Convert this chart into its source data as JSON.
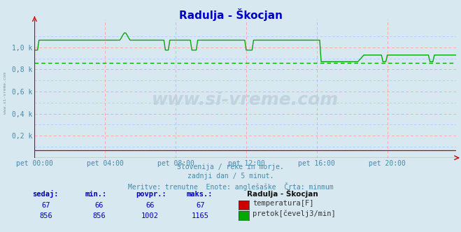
{
  "title": "Radulja - Škocjan",
  "title_color": "#0000cc",
  "bg_color": "#d8e8f0",
  "plot_bg_color": "#d8e8f0",
  "xlabel_color": "#4488aa",
  "ylabel_color": "#4488aa",
  "x_tick_labels": [
    "pet 00:00",
    "pet 04:00",
    "pet 08:00",
    "pet 12:00",
    "pet 16:00",
    "pet 20:00"
  ],
  "x_tick_positions": [
    0,
    48,
    96,
    144,
    192,
    240
  ],
  "y_tick_labels": [
    "0,2 k",
    "0,4 k",
    "0,6 k",
    "0,8 k",
    "1,0 k"
  ],
  "y_tick_values": [
    200,
    400,
    600,
    800,
    1000
  ],
  "ylim": [
    0,
    1250
  ],
  "xlim": [
    0,
    287
  ],
  "total_points": 288,
  "flow_min": 856,
  "temp_color": "#cc0000",
  "flow_color": "#00aa00",
  "min_line_color": "#00aa00",
  "footer_text1": "Slovenija / reke in morje.",
  "footer_text2": "zadnji dan / 5 minut.",
  "footer_text3": "Meritve: trenutne  Enote: anglešaške  Črta: minmum",
  "footer_color": "#4488aa",
  "watermark": "www.si-vreme.com",
  "legend_title": "Radulja - Škocjan",
  "legend_temp_label": "temperatura[F]",
  "legend_flow_label": "pretok[čevelj3/min]",
  "sidebar_text": "www.si-vreme.com",
  "table_headers": [
    "sedaj:",
    "min.:",
    "povpr.:",
    "maks.:"
  ],
  "table_temp_row": [
    "67",
    "66",
    "66",
    "67"
  ],
  "table_flow_row": [
    "856",
    "856",
    "1002",
    "1165"
  ],
  "hgrid_pink": [
    200,
    400,
    600,
    800,
    1000
  ],
  "hgrid_blue": [
    100,
    300,
    500,
    700,
    900,
    1100
  ],
  "vgrid_positions": [
    0,
    48,
    96,
    144,
    192,
    240
  ]
}
